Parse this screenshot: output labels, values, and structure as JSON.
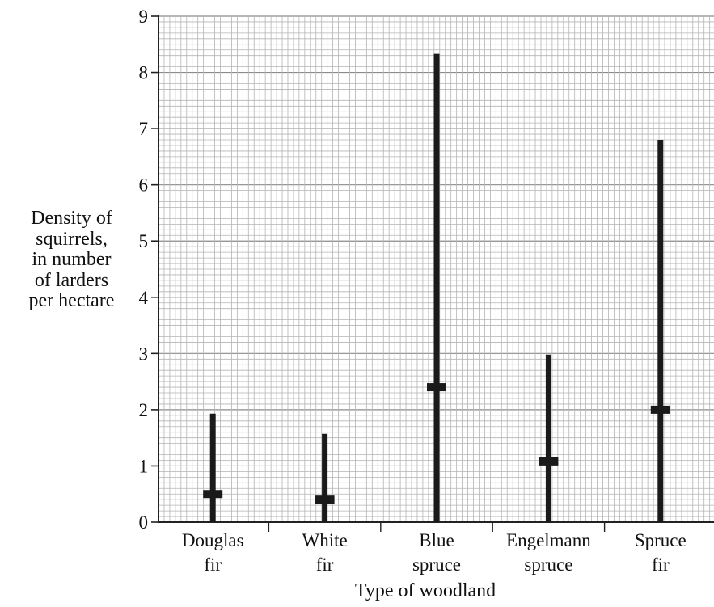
{
  "chart_data": {
    "type": "range",
    "xlabel": "Type of woodland",
    "ylabel_lines": [
      "Density of",
      "squirrels,",
      "in number",
      "of larders",
      "per hectare"
    ],
    "ylim": [
      0,
      9
    ],
    "yticks": [
      0,
      1,
      2,
      3,
      4,
      5,
      6,
      7,
      8,
      9
    ],
    "grid": true,
    "categories": [
      {
        "lines": [
          "Douglas",
          "fir"
        ],
        "min": 0,
        "max": 1.93,
        "mean": 0.5
      },
      {
        "lines": [
          "White",
          "fir"
        ],
        "min": 0,
        "max": 1.57,
        "mean": 0.4
      },
      {
        "lines": [
          "Blue",
          "spruce"
        ],
        "min": 0,
        "max": 8.33,
        "mean": 2.4
      },
      {
        "lines": [
          "Engelmann",
          "spruce"
        ],
        "min": 0,
        "max": 2.98,
        "mean": 1.08
      },
      {
        "lines": [
          "Spruce",
          "fir"
        ],
        "min": 0,
        "max": 6.8,
        "mean": 2.0
      }
    ]
  }
}
